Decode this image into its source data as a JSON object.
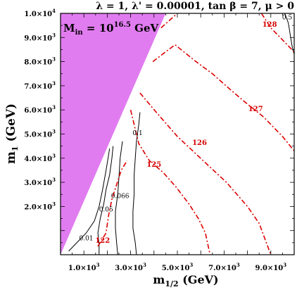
{
  "chart_data": {
    "type": "line",
    "title": "λ = 1, λ' = 0.00001, tan β = 7, μ > 0",
    "annotation": {
      "base": "M",
      "base_sub": "in",
      "equals": " = 10",
      "exp": "16.5",
      "unit": " GeV"
    },
    "xlabel": {
      "base": "m",
      "sub": "1/2",
      "unit": " (GeV)"
    },
    "ylabel": {
      "base": "m",
      "sub": "1",
      "unit": " (GeV)"
    },
    "xlim": [
      0,
      10000
    ],
    "ylim": [
      0,
      10000
    ],
    "xticks": [
      {
        "value": 1000,
        "mant": "1.0×10",
        "exp": "3"
      },
      {
        "value": 3000,
        "mant": "3.0×10",
        "exp": "3"
      },
      {
        "value": 5000,
        "mant": "5.0×10",
        "exp": "3"
      },
      {
        "value": 7000,
        "mant": "7.0×10",
        "exp": "3"
      },
      {
        "value": 9000,
        "mant": "9.0×10",
        "exp": "3"
      }
    ],
    "yticks": [
      {
        "value": 2000,
        "mant": "2.0×10",
        "exp": "3"
      },
      {
        "value": 3000,
        "mant": "3.0×10",
        "exp": "3"
      },
      {
        "value": 4000,
        "mant": "4.0×10",
        "exp": "3"
      },
      {
        "value": 5000,
        "mant": "5.0×10",
        "exp": "3"
      },
      {
        "value": 6000,
        "mant": "6.0×10",
        "exp": "3"
      },
      {
        "value": 7000,
        "mant": "7.0×10",
        "exp": "3"
      },
      {
        "value": 8000,
        "mant": "8.0×10",
        "exp": "3"
      },
      {
        "value": 9000,
        "mant": "9.0×10",
        "exp": "3"
      },
      {
        "value": 10000,
        "mant": "1.0×10",
        "exp": "4"
      }
    ],
    "excluded_region": {
      "color": "#e17cf0",
      "points": [
        [
          0,
          10000
        ],
        [
          4500,
          10000
        ],
        [
          0,
          0
        ]
      ]
    },
    "black_contours": [
      {
        "label": "0.01",
        "label_pos": [
          1100,
          600
        ],
        "points": [
          [
            350,
            150
          ],
          [
            700,
            500
          ],
          [
            1100,
            900
          ],
          [
            1450,
            1400
          ],
          [
            1650,
            2000
          ],
          [
            1800,
            2700
          ],
          [
            1950,
            3500
          ],
          [
            2050,
            4100
          ],
          [
            2100,
            4400
          ]
        ]
      },
      {
        "label": "0.05",
        "label_pos": [
          1950,
          1800
        ],
        "points": [
          [
            1650,
            0
          ],
          [
            1650,
            400
          ],
          [
            1600,
            900
          ],
          [
            1700,
            1500
          ],
          [
            1850,
            2100
          ],
          [
            1950,
            2700
          ],
          [
            2100,
            3300
          ],
          [
            2200,
            4000
          ],
          [
            2250,
            4500
          ]
        ]
      },
      {
        "label": "0.066",
        "label_pos": [
          2550,
          2350
        ],
        "points": [
          [
            2450,
            0
          ],
          [
            2400,
            500
          ],
          [
            2350,
            1100
          ],
          [
            2350,
            1800
          ],
          [
            2450,
            2500
          ],
          [
            2500,
            3200
          ],
          [
            2550,
            4000
          ],
          [
            2650,
            4700
          ]
        ]
      },
      {
        "label": "0.1",
        "label_pos": [
          3300,
          4950
        ],
        "points": [
          [
            3250,
            0
          ],
          [
            3200,
            500
          ],
          [
            3100,
            1100
          ],
          [
            3100,
            1800
          ],
          [
            3150,
            2500
          ],
          [
            3150,
            3300
          ],
          [
            3200,
            4000
          ],
          [
            3250,
            4700
          ],
          [
            3350,
            5400
          ],
          [
            3400,
            5900
          ]
        ]
      },
      {
        "label": "0.5",
        "label_pos": [
          9700,
          9750
        ],
        "points": [
          [
            9600,
            10000
          ],
          [
            9750,
            9600
          ],
          [
            9850,
            9000
          ],
          [
            9920,
            8600
          ],
          [
            10000,
            8300
          ]
        ]
      }
    ],
    "red_contours": [
      {
        "label": "122",
        "label_pos": [
          1800,
          500
        ],
        "points": [
          [
            1600,
            350
          ],
          [
            1950,
            900
          ],
          [
            2050,
            1600
          ],
          [
            2200,
            2300
          ],
          [
            2400,
            2900
          ],
          [
            2600,
            3500
          ],
          [
            2850,
            3900
          ]
        ]
      },
      {
        "label": "125",
        "label_pos": [
          4000,
          3650
        ],
        "points": [
          [
            3000,
            6000
          ],
          [
            3350,
            4600
          ],
          [
            3800,
            3900
          ],
          [
            4400,
            3400
          ],
          [
            4950,
            2800
          ],
          [
            5500,
            2100
          ],
          [
            5900,
            1500
          ],
          [
            6200,
            900
          ],
          [
            6400,
            0
          ]
        ]
      },
      {
        "label": "126",
        "label_pos": [
          5950,
          4550
        ],
        "points": [
          [
            3400,
            6700
          ],
          [
            4100,
            5900
          ],
          [
            5000,
            4900
          ],
          [
            6100,
            3900
          ],
          [
            7100,
            3000
          ],
          [
            8000,
            2000
          ],
          [
            8500,
            1300
          ],
          [
            9000,
            0
          ]
        ]
      },
      {
        "label": "127",
        "label_pos": [
          8350,
          5950
        ],
        "points": [
          [
            3950,
            8000
          ],
          [
            4900,
            8700
          ],
          [
            5800,
            8000
          ],
          [
            6500,
            7500
          ],
          [
            7200,
            6900
          ],
          [
            7800,
            6400
          ],
          [
            8700,
            5700
          ],
          [
            9500,
            4900
          ],
          [
            10000,
            4300
          ]
        ]
      },
      {
        "label": "128",
        "label_pos": [
          8950,
          9450
        ],
        "points": [
          [
            4300,
            9400
          ],
          [
            5000,
            10000
          ]
        ]
      },
      {
        "label": "",
        "label_pos": null,
        "points": [
          [
            8600,
            10000
          ],
          [
            9000,
            9400
          ],
          [
            9500,
            8900
          ],
          [
            10000,
            8400
          ]
        ]
      }
    ]
  }
}
